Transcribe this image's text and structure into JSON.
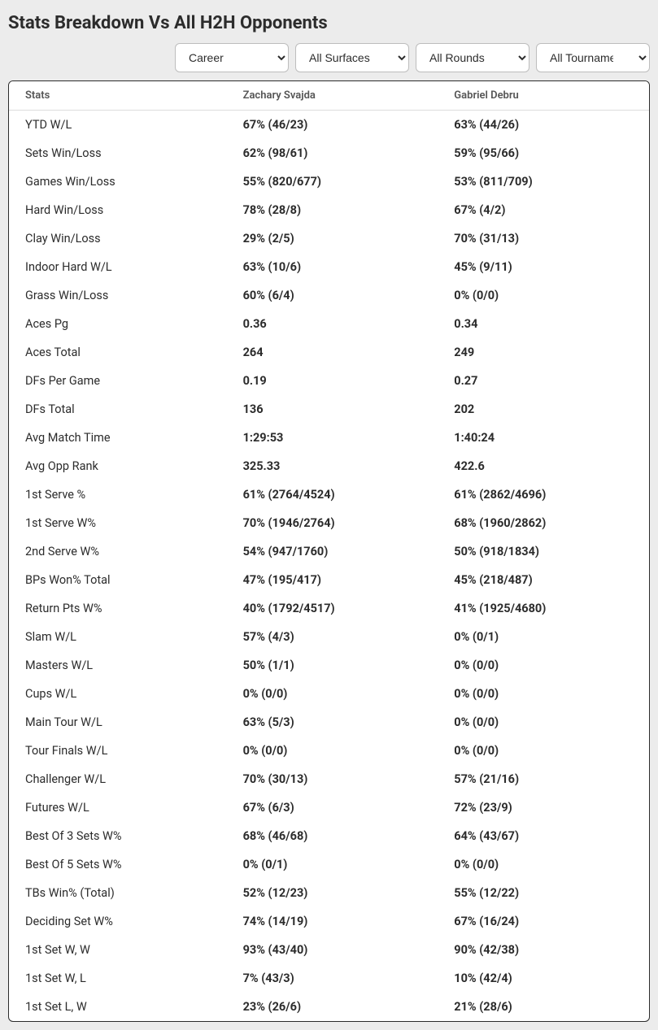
{
  "title": "Stats Breakdown Vs All H2H Opponents",
  "filters": {
    "period": {
      "selected": "Career"
    },
    "surface": {
      "selected": "All Surfaces"
    },
    "round": {
      "selected": "All Rounds"
    },
    "tourn": {
      "selected": "All Tournaments"
    }
  },
  "table": {
    "columns": [
      "Stats",
      "Zachary Svajda",
      "Gabriel Debru"
    ],
    "rows": [
      [
        "YTD W/L",
        "67% (46/23)",
        "63% (44/26)"
      ],
      [
        "Sets Win/Loss",
        "62% (98/61)",
        "59% (95/66)"
      ],
      [
        "Games Win/Loss",
        "55% (820/677)",
        "53% (811/709)"
      ],
      [
        "Hard Win/Loss",
        "78% (28/8)",
        "67% (4/2)"
      ],
      [
        "Clay Win/Loss",
        "29% (2/5)",
        "70% (31/13)"
      ],
      [
        "Indoor Hard W/L",
        "63% (10/6)",
        "45% (9/11)"
      ],
      [
        "Grass Win/Loss",
        "60% (6/4)",
        "0% (0/0)"
      ],
      [
        "Aces Pg",
        "0.36",
        "0.34"
      ],
      [
        "Aces Total",
        "264",
        "249"
      ],
      [
        "DFs Per Game",
        "0.19",
        "0.27"
      ],
      [
        "DFs Total",
        "136",
        "202"
      ],
      [
        "Avg Match Time",
        "1:29:53",
        "1:40:24"
      ],
      [
        "Avg Opp Rank",
        "325.33",
        "422.6"
      ],
      [
        "1st Serve %",
        "61% (2764/4524)",
        "61% (2862/4696)"
      ],
      [
        "1st Serve W%",
        "70% (1946/2764)",
        "68% (1960/2862)"
      ],
      [
        "2nd Serve W%",
        "54% (947/1760)",
        "50% (918/1834)"
      ],
      [
        "BPs Won% Total",
        "47% (195/417)",
        "45% (218/487)"
      ],
      [
        "Return Pts W%",
        "40% (1792/4517)",
        "41% (1925/4680)"
      ],
      [
        "Slam W/L",
        "57% (4/3)",
        "0% (0/1)"
      ],
      [
        "Masters W/L",
        "50% (1/1)",
        "0% (0/0)"
      ],
      [
        "Cups W/L",
        "0% (0/0)",
        "0% (0/0)"
      ],
      [
        "Main Tour W/L",
        "63% (5/3)",
        "0% (0/0)"
      ],
      [
        "Tour Finals W/L",
        "0% (0/0)",
        "0% (0/0)"
      ],
      [
        "Challenger W/L",
        "70% (30/13)",
        "57% (21/16)"
      ],
      [
        "Futures W/L",
        "67% (6/3)",
        "72% (23/9)"
      ],
      [
        "Best Of 3 Sets W%",
        "68% (46/68)",
        "64% (43/67)"
      ],
      [
        "Best Of 5 Sets W%",
        "0% (0/1)",
        "0% (0/0)"
      ],
      [
        "TBs Win% (Total)",
        "52% (12/23)",
        "55% (12/22)"
      ],
      [
        "Deciding Set W%",
        "74% (14/19)",
        "67% (16/24)"
      ],
      [
        "1st Set W, W",
        "93% (43/40)",
        "90% (42/38)"
      ],
      [
        "1st Set W, L",
        "7% (43/3)",
        "10% (42/4)"
      ],
      [
        "1st Set L, W",
        "23% (26/6)",
        "21% (28/6)"
      ]
    ]
  },
  "styling": {
    "page_bg": "#ececec",
    "card_bg": "#ffffff",
    "card_border": "#2c2c2c",
    "header_text_color": "#555555",
    "body_text_color": "#2c2c2c",
    "title_fontsize": 22,
    "header_fontsize": 13,
    "cell_fontsize": 14.5,
    "col_widths_pct": [
      34,
      33,
      33
    ],
    "value_font_weight": 700,
    "label_font_weight": 400
  }
}
